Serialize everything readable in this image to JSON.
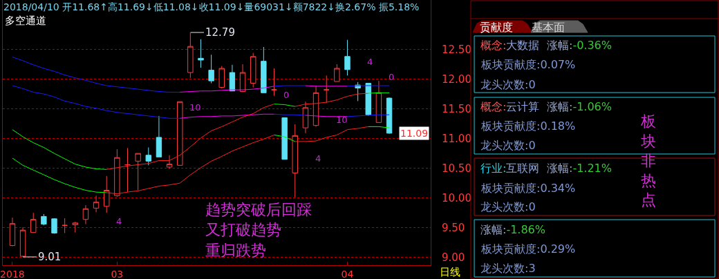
{
  "chart_data": [
    {
      "type": "candlestick",
      "title": "2018/04/10 开11.68↑高11.69↓低11.08↓收11.09↓量69031↓额7822↓换2.67% 振5.18%",
      "subtitle": "多空通道",
      "categories": [
        "2018",
        null,
        null,
        null,
        null,
        null,
        null,
        null,
        null,
        null,
        "03",
        null,
        null,
        null,
        null,
        null,
        null,
        null,
        null,
        null,
        null,
        null,
        null,
        null,
        null,
        null,
        null,
        null,
        null,
        null,
        null,
        null,
        "04",
        null,
        null,
        null,
        null
      ],
      "ohlc": [
        [
          9.2,
          9.67,
          9.19,
          9.57
        ],
        [
          9.02,
          9.51,
          9.01,
          9.46
        ],
        [
          9.42,
          9.75,
          9.42,
          9.64
        ],
        [
          9.69,
          9.73,
          9.54,
          9.56
        ],
        [
          9.65,
          9.66,
          9.4,
          9.41
        ],
        [
          9.54,
          9.66,
          9.41,
          9.54
        ],
        [
          9.55,
          9.6,
          9.42,
          9.58
        ],
        [
          9.64,
          9.88,
          9.56,
          9.82
        ],
        [
          9.83,
          10.04,
          9.76,
          9.93
        ],
        [
          9.86,
          10.37,
          9.75,
          10.13
        ],
        [
          10.04,
          10.82,
          10.02,
          10.68
        ],
        [
          10.56,
          10.84,
          10.1,
          10.56
        ],
        [
          10.62,
          10.75,
          10.13,
          10.75
        ],
        [
          10.72,
          10.85,
          10.55,
          10.62
        ],
        [
          11.02,
          11.38,
          10.69,
          10.69
        ],
        [
          10.52,
          10.72,
          10.49,
          10.57
        ],
        [
          10.55,
          11.62,
          10.55,
          11.62
        ],
        [
          12.11,
          12.79,
          12.02,
          12.55
        ],
        [
          12.35,
          12.67,
          12.19,
          12.32
        ],
        [
          12.15,
          12.41,
          11.93,
          11.97
        ],
        [
          11.86,
          12.22,
          11.84,
          12.18
        ],
        [
          12.11,
          12.24,
          11.8,
          11.8
        ],
        [
          11.79,
          12.25,
          11.78,
          12.11
        ],
        [
          11.93,
          12.44,
          11.86,
          12.38
        ],
        [
          12.3,
          12.54,
          11.77,
          11.77
        ],
        [
          11.82,
          12.18,
          11.72,
          11.82
        ],
        [
          11.35,
          11.35,
          10.65,
          10.65
        ],
        [
          10.42,
          11.24,
          10.01,
          11.05
        ],
        [
          11.18,
          11.62,
          11.09,
          11.52
        ],
        [
          11.22,
          11.89,
          11.2,
          11.77
        ],
        [
          11.82,
          12.06,
          11.6,
          11.82
        ],
        [
          11.96,
          12.25,
          11.96,
          12.18
        ],
        [
          12.38,
          12.66,
          12.06,
          12.16
        ],
        [
          11.9,
          11.95,
          11.63,
          11.85
        ],
        [
          11.93,
          11.93,
          11.38,
          11.4
        ],
        [
          11.27,
          11.97,
          11.27,
          11.77
        ],
        [
          11.68,
          11.69,
          11.08,
          11.09
        ]
      ],
      "colors": [
        "#ff3c3c",
        "#ff3c3c",
        "#ff3c3c",
        "#5ce1f5",
        "#5ce1f5",
        "#ff3c3c",
        "#ff3c3c",
        "#ff3c3c",
        "#ff3c3c",
        "#ff3c3c",
        "#ff3c3c",
        "#ff3c3c",
        "#ff3c3c",
        "#5ce1f5",
        "#5ce1f5",
        "#ff3c3c",
        "#ff3c3c",
        "#ff3c3c",
        "#5ce1f5",
        "#5ce1f5",
        "#ff3c3c",
        "#5ce1f5",
        "#ff3c3c",
        "#ff3c3c",
        "#5ce1f5",
        "#ff3c3c",
        "#5ce1f5",
        "#ff3c3c",
        "#ff3c3c",
        "#ff3c3c",
        "#ff3c3c",
        "#ff3c3c",
        "#5ce1f5",
        "#5ce1f5",
        "#5ce1f5",
        "#ff3c3c",
        "#5ce1f5"
      ],
      "series": [
        {
          "type": "line",
          "color": "#1a1aff",
          "values": [
            12.37,
            12.31,
            12.24,
            12.18,
            12.13,
            12.07,
            12.02,
            11.98,
            11.93,
            11.89,
            11.87,
            11.85,
            11.83,
            11.81,
            11.79,
            11.78,
            11.78,
            null,
            null,
            null,
            null,
            null,
            null,
            null,
            null,
            11.88,
            11.89,
            11.89,
            11.89,
            null,
            null,
            null,
            11.88,
            11.89,
            11.89,
            11.89,
            11.89
          ]
        },
        {
          "type": "line",
          "color": "#1a1aff",
          "values": [
            11.89,
            11.84,
            11.78,
            11.75,
            11.7,
            11.63,
            11.59,
            11.54,
            11.51,
            11.47,
            11.44,
            11.42,
            11.4,
            11.38,
            11.36,
            11.34,
            11.34,
            null,
            null,
            null,
            null,
            null,
            null,
            null,
            null,
            11.41,
            11.4,
            11.4,
            11.39,
            null,
            null,
            null,
            11.37,
            11.38,
            11.39,
            11.4,
            11.4
          ]
        },
        {
          "type": "line",
          "color": "#ff00ff",
          "values": [
            null,
            null,
            null,
            null,
            null,
            null,
            null,
            null,
            null,
            null,
            null,
            null,
            null,
            null,
            null,
            null,
            11.78,
            11.79,
            11.8,
            11.8,
            11.81,
            11.82,
            11.82,
            11.83,
            11.85,
            11.88,
            null,
            null,
            11.89,
            11.88,
            11.88,
            11.88,
            11.88,
            null,
            null,
            null,
            null
          ]
        },
        {
          "type": "line",
          "color": "#ff00ff",
          "values": [
            null,
            null,
            null,
            null,
            null,
            null,
            null,
            null,
            null,
            null,
            null,
            null,
            null,
            null,
            null,
            null,
            11.34,
            11.36,
            11.37,
            11.37,
            11.38,
            11.38,
            11.39,
            11.4,
            11.41,
            11.41,
            null,
            null,
            11.39,
            11.38,
            11.37,
            11.37,
            11.37,
            null,
            null,
            null,
            null
          ]
        },
        {
          "type": "line",
          "color": "#ff2020",
          "values": [
            null,
            null,
            null,
            null,
            null,
            null,
            null,
            null,
            null,
            10.48,
            10.51,
            10.54,
            10.56,
            10.58,
            10.63,
            10.63,
            10.72,
            10.86,
            11.01,
            11.13,
            11.2,
            11.28,
            11.36,
            11.42,
            11.52,
            11.58,
            null,
            11.54,
            11.58,
            11.59,
            11.61,
            11.65,
            11.71,
            11.75,
            11.76,
            null,
            null
          ]
        },
        {
          "type": "line",
          "color": "#ff2020",
          "values": [
            null,
            null,
            null,
            null,
            null,
            null,
            null,
            null,
            null,
            10.09,
            10.07,
            10.1,
            10.12,
            10.16,
            10.2,
            10.22,
            10.25,
            10.39,
            10.51,
            10.62,
            10.7,
            10.79,
            10.86,
            10.93,
            10.99,
            11.06,
            null,
            10.95,
            10.95,
            10.96,
            11.02,
            11.06,
            11.15,
            11.17,
            11.2,
            null,
            null
          ]
        },
        {
          "type": "line",
          "color": "#00ff00",
          "values": [
            11.15,
            11.03,
            10.93,
            10.85,
            10.75,
            10.66,
            10.57,
            10.52,
            10.49,
            10.48,
            null,
            null,
            null,
            null,
            null,
            null,
            null,
            null,
            null,
            null,
            null,
            null,
            null,
            null,
            null,
            11.58,
            11.57,
            11.54,
            null,
            null,
            null,
            null,
            null,
            null,
            11.76,
            11.77,
            11.77
          ]
        },
        {
          "type": "line",
          "color": "#00ff00",
          "values": [
            10.67,
            10.55,
            10.47,
            10.39,
            10.31,
            10.24,
            10.18,
            10.13,
            10.1,
            10.09,
            null,
            null,
            null,
            null,
            null,
            null,
            null,
            null,
            null,
            null,
            null,
            null,
            null,
            null,
            null,
            11.06,
            11.03,
            10.95,
            null,
            null,
            null,
            null,
            null,
            null,
            11.2,
            11.2,
            11.18
          ]
        }
      ],
      "ylim": [
        8.87,
        13.33
      ],
      "yticks": [
        {
          "value": 9,
          "label": "9.00"
        },
        {
          "value": 9.5,
          "label": "9.50"
        },
        {
          "value": 10,
          "label": "10.00"
        },
        {
          "value": 10.5,
          "label": "10.50"
        },
        {
          "value": 11,
          "label": "11.00"
        },
        {
          "value": 11.5,
          "label": "11.50"
        },
        {
          "value": 12,
          "label": "12.00"
        },
        {
          "value": 12.5,
          "label": "12.50"
        }
      ],
      "grid": "y",
      "annotations": [
        "12.79",
        "9.01",
        "11.09",
        "4",
        "10",
        "0",
        "4",
        "10",
        "4",
        "0",
        "趋势突破后回踩",
        "又打破趋势",
        "重归跌势",
        "日线"
      ]
    },
    {
      "type": "other",
      "annotations": [
        "贡献度",
        "基本面",
        "概念:大数据",
        "涨幅:-0.36%",
        "板块贡献度:0.07%",
        "龙头次数:0",
        "概念:云计算",
        "涨幅:-1.06%",
        "板块贡献度:0.18%",
        "龙头次数:0",
        "行业:互联网",
        "涨幅:-1.21%",
        "板块贡献度:0.34%",
        "龙头次数:0",
        "涨幅:-1.86%",
        "板块贡献度:0.29%",
        "龙头次数:3",
        "板块非热点"
      ]
    }
  ]
}
